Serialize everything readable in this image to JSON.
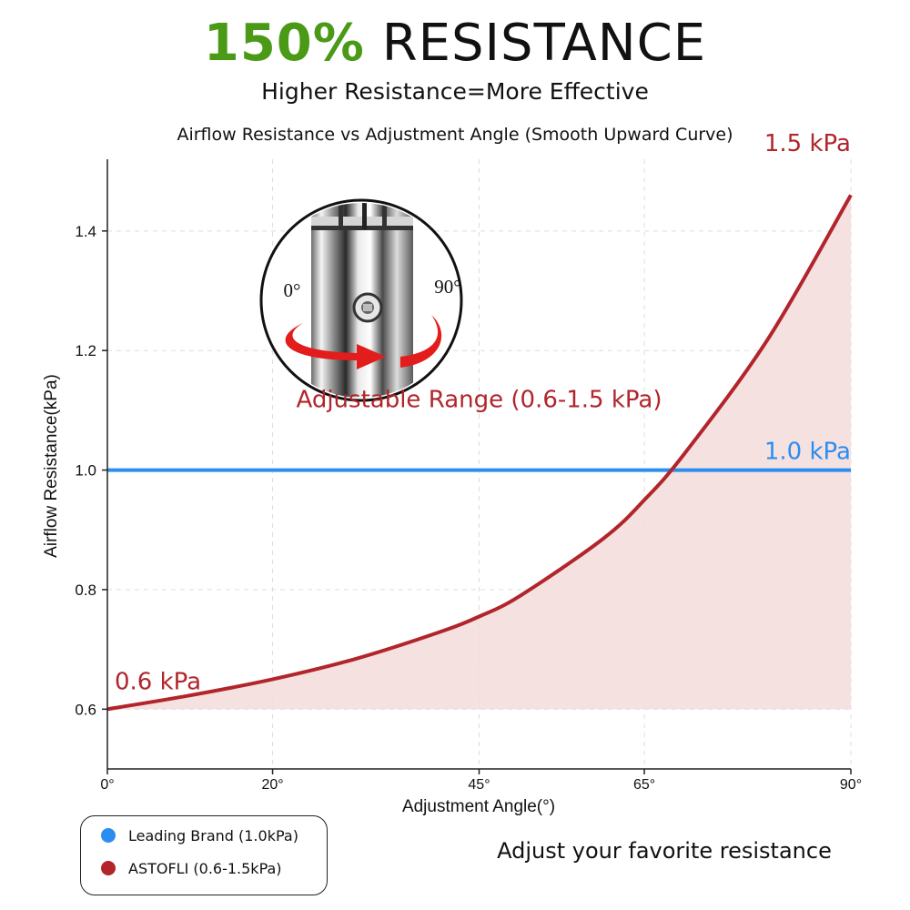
{
  "header": {
    "headline_pct": "150%",
    "headline_word": "RESISTANCE",
    "subhead": "Higher Resistance=More Effective"
  },
  "colors": {
    "accent_green": "#4a9a17",
    "curve_red": "#b1252b",
    "line_blue": "#2a8ef0",
    "fill_pink": "#f4dcdc"
  },
  "inset": {
    "description_icon": "adjustable-valve-icon",
    "label_start": "0°",
    "label_end": "90°"
  },
  "legend": {
    "items": [
      {
        "label": "Leading Brand (1.0kPa)",
        "color": "#2a8ef0"
      },
      {
        "label": "ASTOFLI (0.6-1.5kPa)",
        "color": "#b1252b"
      }
    ]
  },
  "footer": {
    "note": "Adjust your favorite resistance"
  },
  "chart_data": {
    "type": "line",
    "title": "Airflow Resistance vs Adjustment Angle (Smooth Upward Curve)",
    "xlabel": "Adjustment Angle(°)",
    "ylabel": "Airflow Resistance(kPa)",
    "xlim": [
      0,
      90
    ],
    "ylim": [
      0.5,
      1.52
    ],
    "x_tick_values": [
      0,
      20,
      45,
      65,
      90
    ],
    "x_tick_labels": [
      "0°",
      "20°",
      "45°",
      "65°",
      "90°"
    ],
    "y_tick_values": [
      0.6,
      0.8,
      1.0,
      1.2,
      1.4
    ],
    "y_tick_labels": [
      "0.6",
      "0.8",
      "1.0",
      "1.2",
      "1.4"
    ],
    "grid": true,
    "legend_position": "bottom-left",
    "series": [
      {
        "name": "ASTOFLI (0.6-1.5kPa)",
        "color": "#b1252b",
        "fill": true,
        "x": [
          0,
          10,
          20,
          30,
          40,
          45,
          50,
          60,
          65,
          70,
          80,
          90
        ],
        "y": [
          0.6,
          0.623,
          0.65,
          0.684,
          0.728,
          0.755,
          0.79,
          0.885,
          0.95,
          1.03,
          1.22,
          1.46
        ]
      },
      {
        "name": "Leading Brand (1.0kPa)",
        "color": "#2a8ef0",
        "fill": false,
        "x": [
          0,
          90
        ],
        "y": [
          1.0,
          1.0
        ]
      }
    ],
    "annotations": [
      {
        "text": "1.5 kPa",
        "x": 90,
        "y": 1.5,
        "color": "#b1252b"
      },
      {
        "text": "1.0 kPa",
        "x": 90,
        "y": 1.0,
        "color": "#2a8ef0"
      },
      {
        "text": "0.6 kPa",
        "x": 0,
        "y": 0.6,
        "color": "#b1252b"
      },
      {
        "text": "Adjustable Range (0.6-1.5 kPa)",
        "x": 45,
        "y": 1.05,
        "color": "#b1252b"
      }
    ]
  }
}
